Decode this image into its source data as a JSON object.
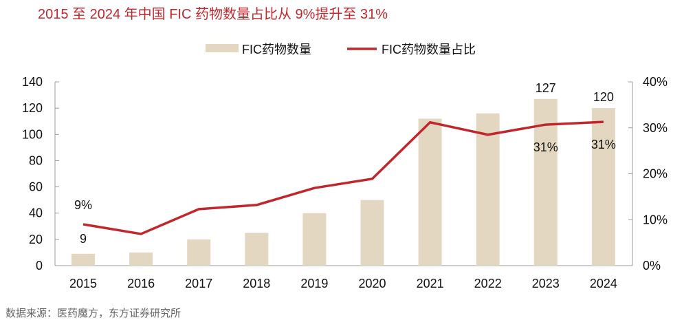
{
  "title": "2015 至 2024 年中国 FIC 药物数量占比从 9%提升至 31%",
  "source": "数据来源：医药魔方，东方证券研究所",
  "chart_data": {
    "type": "bar+line",
    "categories": [
      "2015",
      "2016",
      "2017",
      "2018",
      "2019",
      "2020",
      "2021",
      "2022",
      "2023",
      "2024"
    ],
    "series": [
      {
        "name": "FIC药物数量",
        "type": "bar",
        "axis": "left",
        "color": "#e3d7c1",
        "values": [
          9,
          10,
          20,
          25,
          40,
          50,
          112,
          116,
          127,
          120
        ]
      },
      {
        "name": "FIC药物数量占比",
        "type": "line",
        "axis": "right",
        "color": "#c0272d",
        "values": [
          9,
          6.9,
          12.3,
          13.2,
          16.9,
          18.9,
          31.2,
          28.5,
          30.7,
          31.3
        ]
      }
    ],
    "data_labels": [
      {
        "series": 1,
        "index": 0,
        "text": "9%",
        "position": "above"
      },
      {
        "series": 0,
        "index": 0,
        "text": "9",
        "position": "above-bar"
      },
      {
        "series": 0,
        "index": 8,
        "text": "127",
        "position": "above-bar"
      },
      {
        "series": 0,
        "index": 9,
        "text": "120",
        "position": "above-bar"
      },
      {
        "series": 1,
        "index": 8,
        "text": "31%",
        "position": "below"
      },
      {
        "series": 1,
        "index": 9,
        "text": "31%",
        "position": "below"
      }
    ],
    "left_axis": {
      "ylim": [
        0,
        140
      ],
      "ticks": [
        "0",
        "20",
        "40",
        "60",
        "80",
        "100",
        "120",
        "140"
      ]
    },
    "right_axis": {
      "ylim": [
        0,
        40
      ],
      "ticks": [
        "0%",
        "10%",
        "20%",
        "30%",
        "40%"
      ]
    },
    "grid": false,
    "legend": "top-center"
  }
}
